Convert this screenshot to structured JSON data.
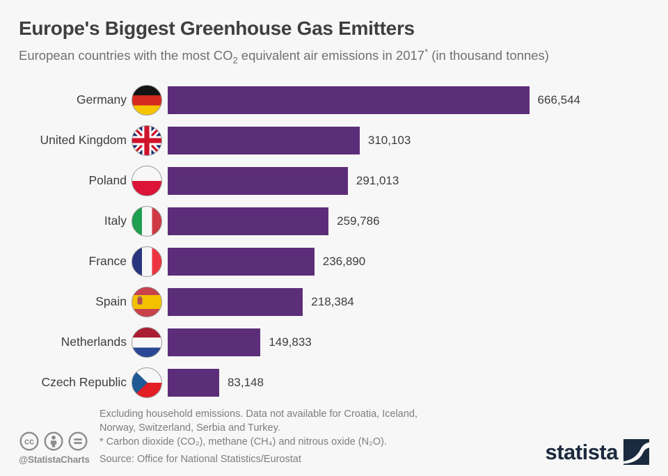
{
  "header": {
    "title": "Europe's Biggest Greenhouse Gas Emitters",
    "subtitle": {
      "part1": "European countries with the most CO",
      "sub1": "2",
      "part2": " equivalent air emissions in 2017",
      "sup1": "*",
      "part3": " (in thousand tonnes)"
    }
  },
  "rows": [
    {
      "country": "Germany",
      "value_label": "666,544",
      "flag": "germany"
    },
    {
      "country": "United Kingdom",
      "value_label": "310,103",
      "flag": "united-kingdom"
    },
    {
      "country": "Poland",
      "value_label": "291,013",
      "flag": "poland"
    },
    {
      "country": "Italy",
      "value_label": "259,786",
      "flag": "italy"
    },
    {
      "country": "France",
      "value_label": "236,890",
      "flag": "france"
    },
    {
      "country": "Spain",
      "value_label": "218,384",
      "flag": "spain"
    },
    {
      "country": "Netherlands",
      "value_label": "149,833",
      "flag": "netherlands"
    },
    {
      "country": "Czech Republic",
      "value_label": "83,148",
      "flag": "czech-republic"
    }
  ],
  "chart_data": {
    "type": "bar",
    "orientation": "horizontal",
    "title": "Europe's Biggest Greenhouse Gas Emitters",
    "subtitle": "European countries with the most CO₂ equivalent air emissions in 2017* (in thousand tonnes)",
    "categories": [
      "Germany",
      "United Kingdom",
      "Poland",
      "Italy",
      "France",
      "Spain",
      "Netherlands",
      "Czech Republic"
    ],
    "values": [
      666544,
      310103,
      291013,
      259786,
      236890,
      218384,
      149833,
      83148
    ],
    "value_labels": [
      "666,544",
      "310,103",
      "291,013",
      "259,786",
      "236,890",
      "218,384",
      "149,833",
      "83,148"
    ],
    "unit": "thousand tonnes CO2 equivalent",
    "xlim": [
      0,
      666544
    ],
    "grid": false,
    "legend": false,
    "bar_color": "#5c2d78"
  },
  "footer": {
    "notes": [
      "Excluding household emissions. Data not available for Croatia, Iceland,",
      "Norway, Switzerland, Serbia and Turkey.",
      "* Carbon dioxide (CO₂), methane (CH₄) and nitrous oxide (N₂O)."
    ],
    "source": "Source: Office for National Statistics/Eurostat",
    "handle": "@StatistaCharts",
    "brand": "statista",
    "license_icons": [
      "cc-icon",
      "attribution-icon",
      "no-derivatives-icon"
    ]
  },
  "colors": {
    "bar": "#5c2d78",
    "background": "#f7f7f7",
    "brand_navy": "#1b2a3e",
    "title_text": "#3f3f3f",
    "subtitle_text": "#6f6f6f",
    "footer_text": "#7d7d7d",
    "license_gray": "#8c8c8c"
  }
}
